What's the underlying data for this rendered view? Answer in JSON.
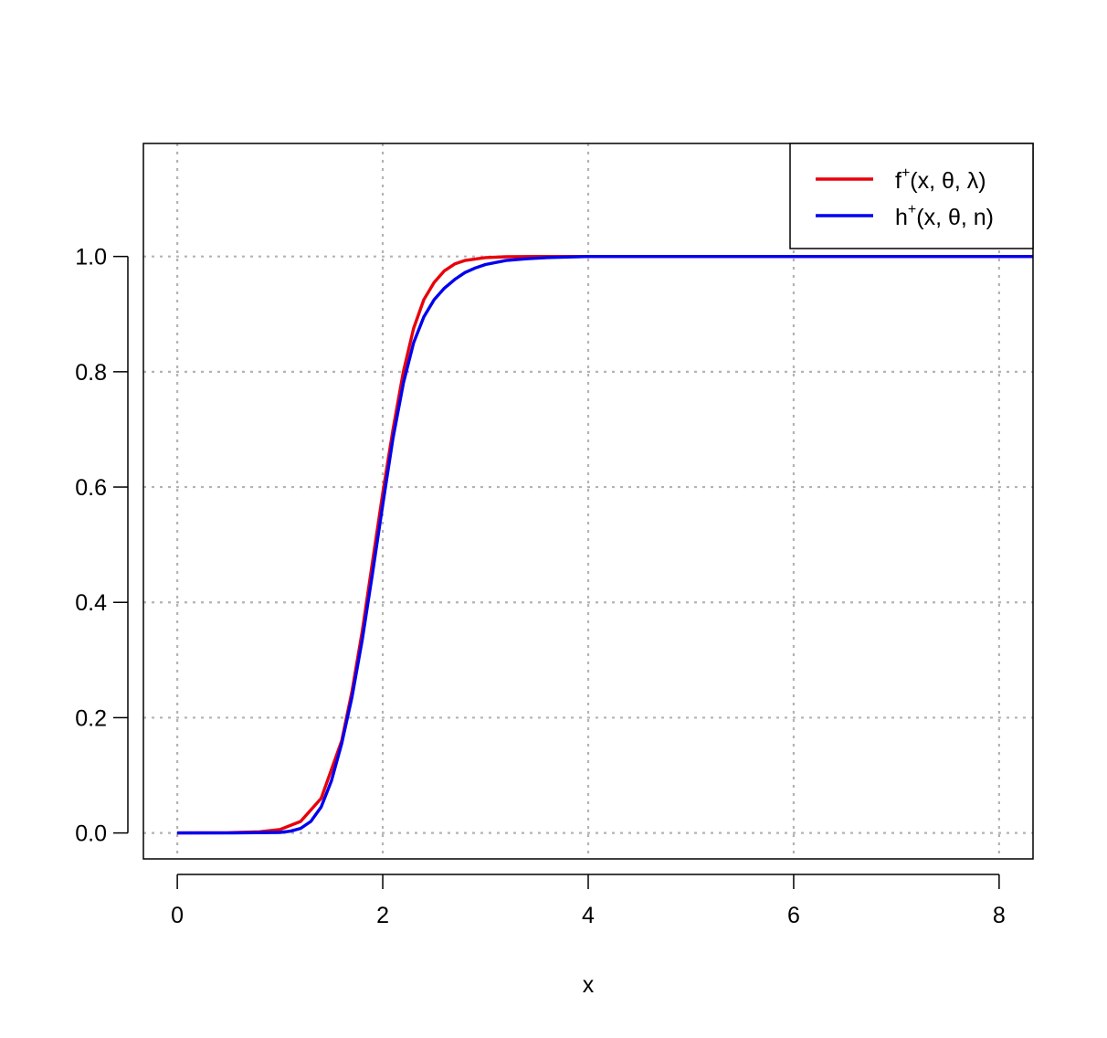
{
  "chart_data": {
    "type": "line",
    "xlabel": "x",
    "ylabel": "",
    "xlim": [
      -0.33,
      8.33
    ],
    "ylim": [
      -0.045,
      1.196
    ],
    "x_ticks": [
      0,
      2,
      4,
      6,
      8
    ],
    "x_tick_labels": [
      "0",
      "2",
      "4",
      "6",
      "8"
    ],
    "y_ticks": [
      0.0,
      0.2,
      0.4,
      0.6,
      0.8,
      1.0
    ],
    "y_tick_labels": [
      "0.0",
      "0.2",
      "0.4",
      "0.6",
      "0.8",
      "1.0"
    ],
    "grid": true,
    "legend_position": "top-right",
    "series": [
      {
        "name_base": "f",
        "name_sup": "+",
        "name_rest": "(x, θ, λ)",
        "color": "#e8000b",
        "x": [
          0,
          0.5,
          0.8,
          1.0,
          1.2,
          1.4,
          1.6,
          1.7,
          1.8,
          1.9,
          2.0,
          2.1,
          2.2,
          2.3,
          2.4,
          2.5,
          2.6,
          2.7,
          2.8,
          3.0,
          3.2,
          3.5,
          4.0,
          5.0,
          6.0,
          7.0,
          8.0,
          8.33
        ],
        "y": [
          0.0,
          0.0005,
          0.002,
          0.006,
          0.02,
          0.06,
          0.16,
          0.245,
          0.35,
          0.47,
          0.59,
          0.7,
          0.8,
          0.875,
          0.925,
          0.955,
          0.975,
          0.987,
          0.993,
          0.998,
          0.9995,
          1.0,
          1.0,
          1.0,
          1.0,
          1.0,
          1.0,
          1.0
        ]
      },
      {
        "name_base": "h",
        "name_sup": "+",
        "name_rest": "(x, θ, n)",
        "color": "#0000ee",
        "x": [
          0,
          0.5,
          1.0,
          1.1,
          1.2,
          1.3,
          1.4,
          1.5,
          1.6,
          1.7,
          1.8,
          1.9,
          2.0,
          2.1,
          2.2,
          2.3,
          2.4,
          2.5,
          2.6,
          2.7,
          2.8,
          2.9,
          3.0,
          3.2,
          3.4,
          3.6,
          3.8,
          4.0,
          5.0,
          6.0,
          7.0,
          8.0,
          8.33
        ],
        "y": [
          0.0,
          0.0,
          0.001,
          0.003,
          0.008,
          0.02,
          0.045,
          0.09,
          0.155,
          0.235,
          0.335,
          0.45,
          0.57,
          0.685,
          0.78,
          0.85,
          0.895,
          0.925,
          0.945,
          0.96,
          0.972,
          0.98,
          0.986,
          0.993,
          0.996,
          0.998,
          0.999,
          1.0,
          1.0,
          1.0,
          1.0,
          1.0,
          1.0
        ]
      }
    ]
  }
}
